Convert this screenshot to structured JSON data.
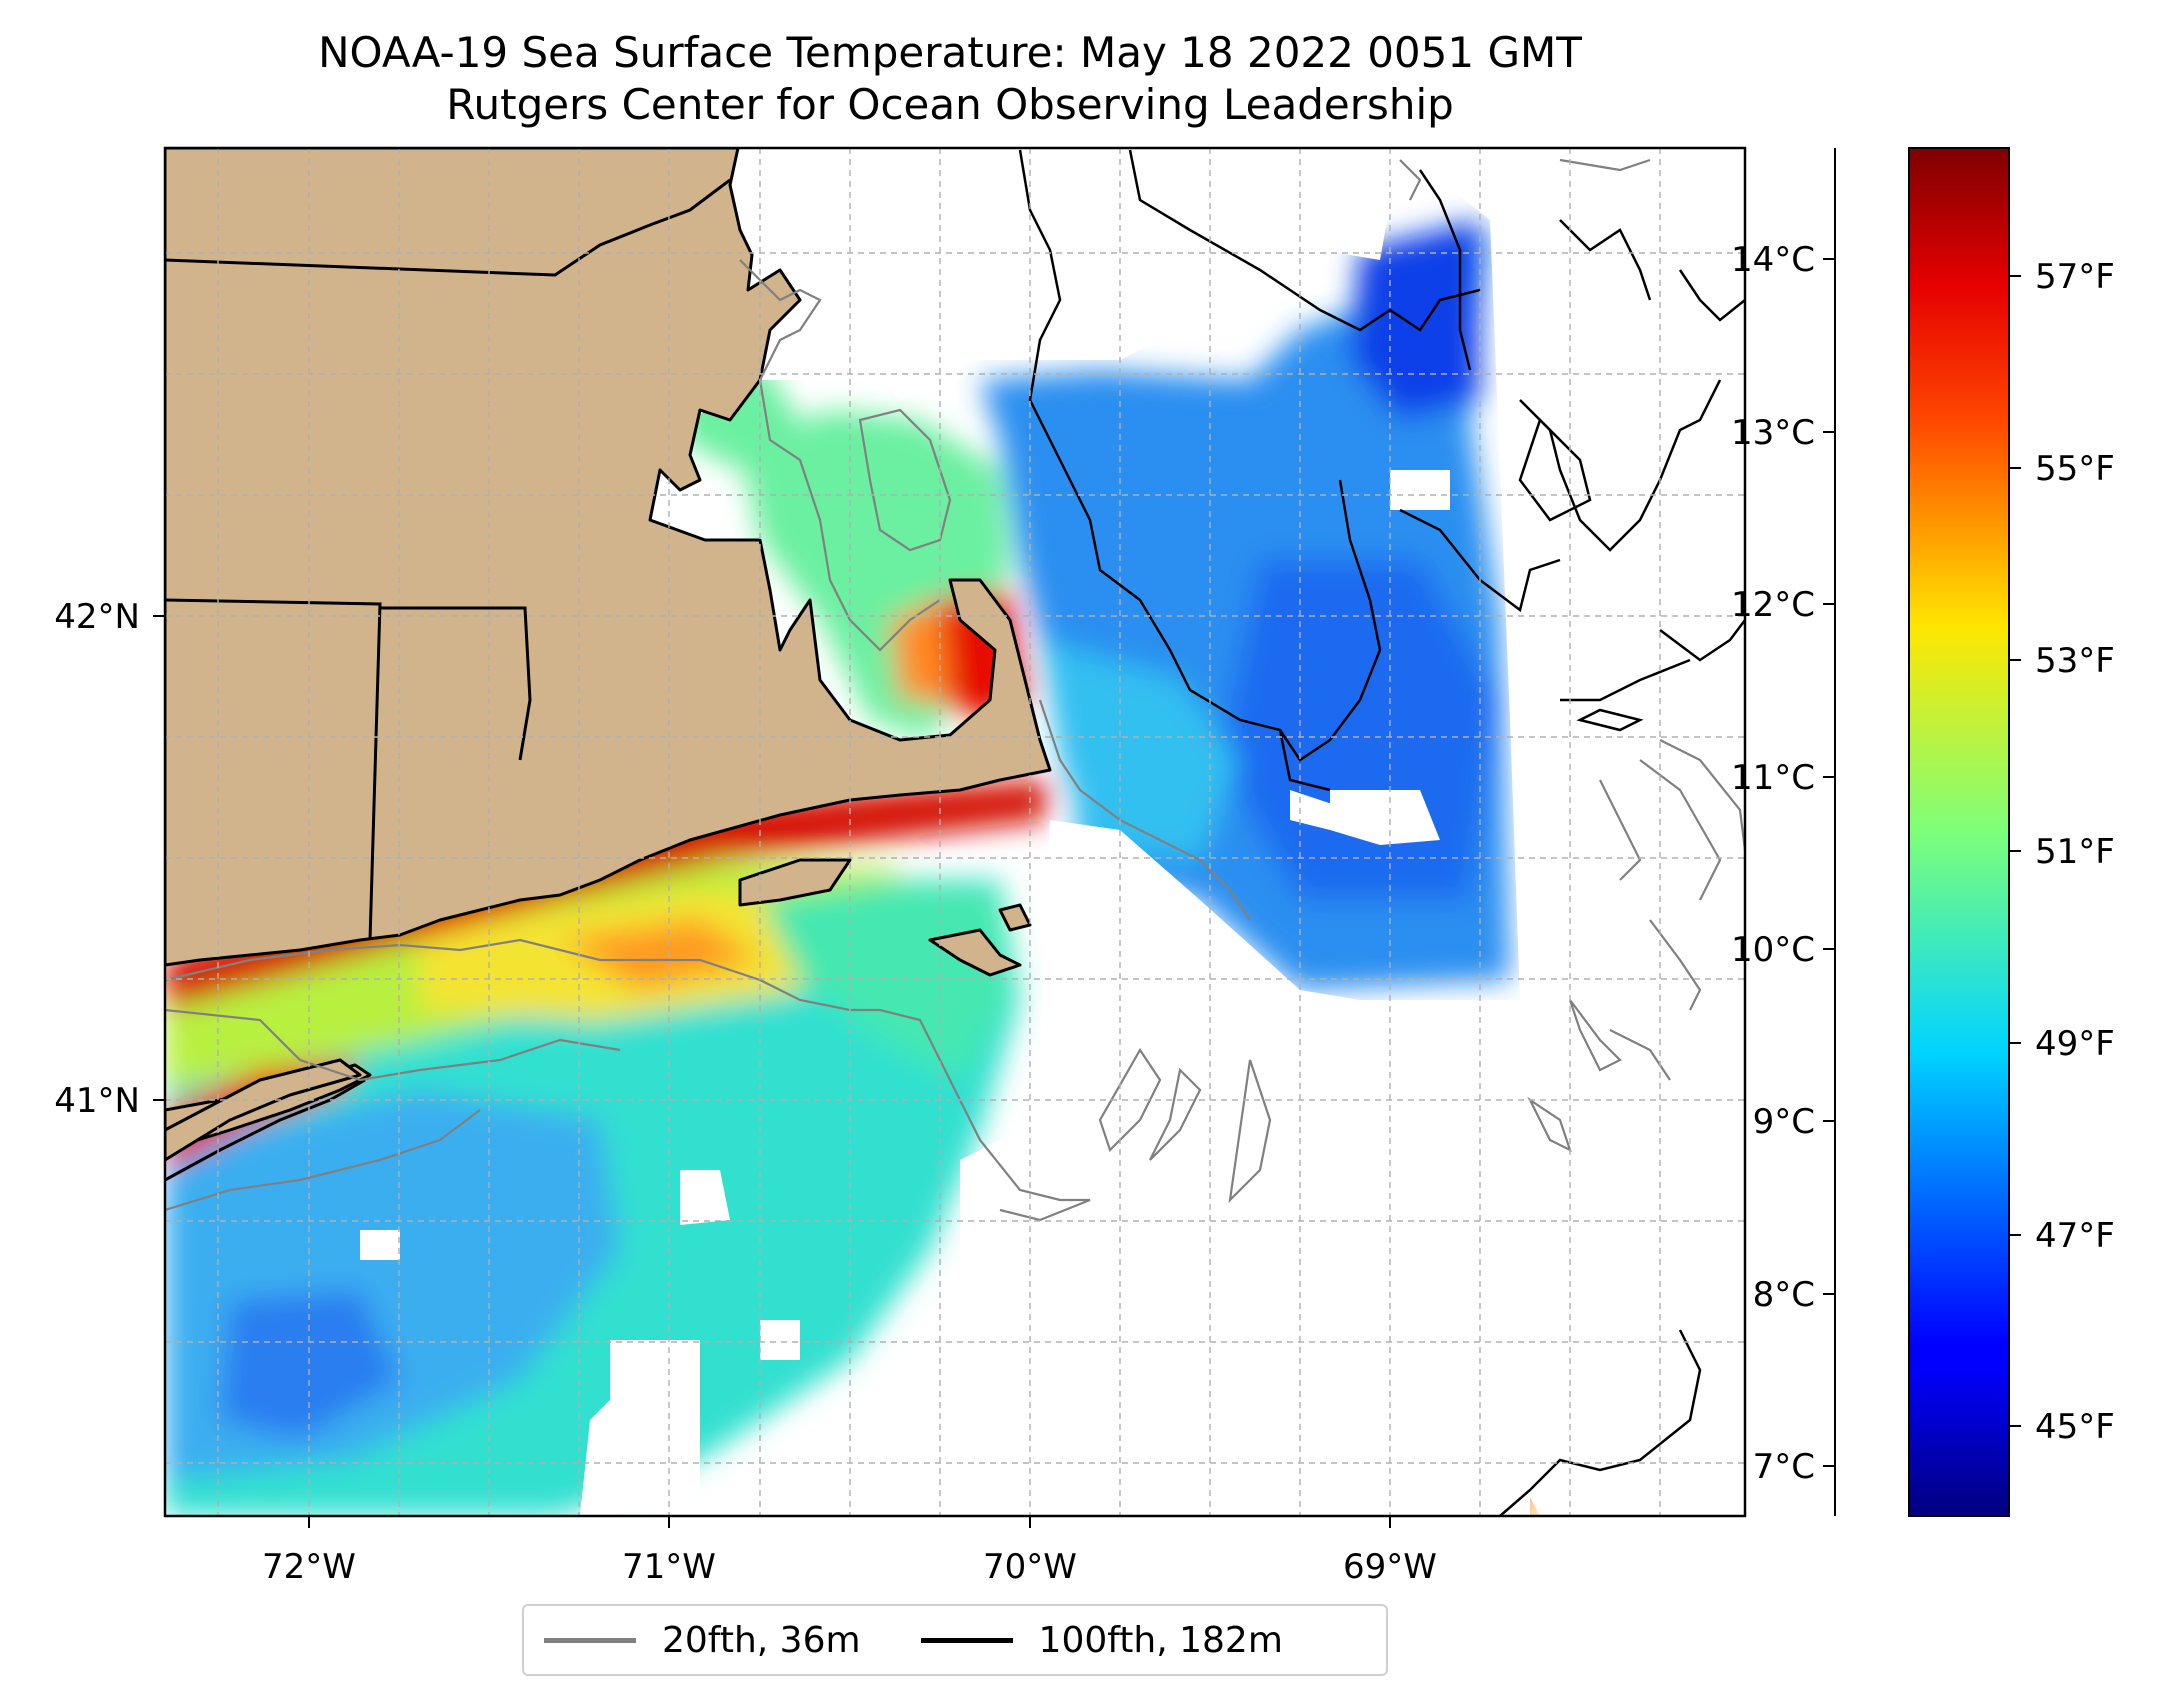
{
  "title": {
    "line1": "NOAA-19 Sea Surface Temperature: May 18 2022 0051 GMT",
    "line2": "Rutgers Center for Ocean Observing Leadership"
  },
  "map": {
    "longitude_labels": [
      "72°W",
      "71°W",
      "70°W",
      "69°W"
    ],
    "latitude_labels": [
      "42°N",
      "41°N"
    ],
    "extent": {
      "lon": [
        -72.4,
        -68.0
      ],
      "lat": [
        40.15,
        43.0
      ]
    },
    "land_color": "#d2b48c",
    "grid": true
  },
  "colorbar": {
    "celsius_labels": [
      "14°C",
      "13°C",
      "12°C",
      "11°C",
      "10°C",
      "9°C",
      "8°C",
      "7°C"
    ],
    "fahrenheit_labels": [
      "57°F",
      "55°F",
      "53°F",
      "51°F",
      "49°F",
      "47°F",
      "45°F"
    ],
    "colormap": "jet",
    "range_c": [
      6.7,
      14.65
    ]
  },
  "legend": {
    "items": [
      {
        "label": "20fth, 36m",
        "color": "#808080"
      },
      {
        "label": "100fth, 182m",
        "color": "#000000"
      }
    ]
  },
  "chart_data": {
    "type": "heatmap",
    "title": "NOAA-19 Sea Surface Temperature: May 18 2022 0051 GMT",
    "subtitle": "Rutgers Center for Ocean Observing Leadership",
    "xlabel": "",
    "ylabel": "",
    "xlim": [
      -72.4,
      -68.0
    ],
    "ylim": [
      40.15,
      43.0
    ],
    "x_ticks": [
      "72°W",
      "71°W",
      "70°W",
      "69°W"
    ],
    "y_ticks": [
      "42°N",
      "41°N"
    ],
    "colorbar_c_ticks": [
      14,
      13,
      12,
      11,
      10,
      9,
      8,
      7
    ],
    "colorbar_f_ticks": [
      57,
      55,
      53,
      51,
      49,
      47,
      45
    ],
    "grid": true,
    "legend_position": "bottom-center"
  }
}
